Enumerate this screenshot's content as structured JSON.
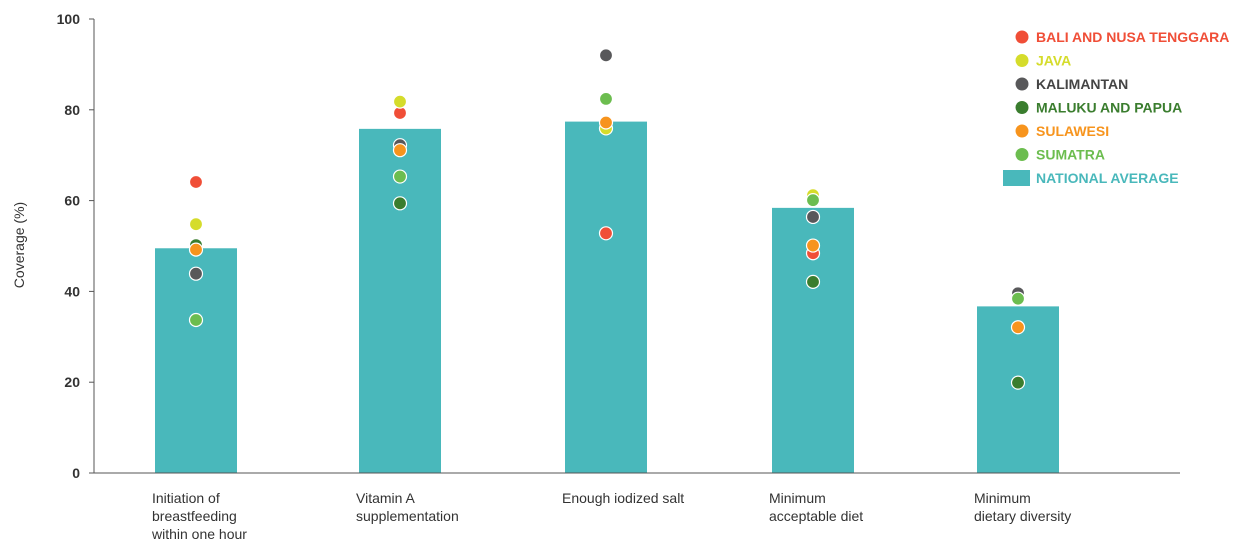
{
  "chart_data": {
    "type": "bar",
    "ylabel": "Coverage (%)",
    "ylim": [
      0,
      100
    ],
    "yticks": [
      0,
      20,
      40,
      60,
      80,
      100
    ],
    "categories": [
      [
        "Initiation of",
        "breastfeeding",
        "within one hour"
      ],
      [
        "Vitamin A",
        "supplementation"
      ],
      [
        "Enough iodized salt"
      ],
      [
        "Minimum",
        "acceptable diet"
      ],
      [
        "Minimum",
        "dietary diversity"
      ]
    ],
    "bar_series": {
      "name": "NATIONAL AVERAGE",
      "color": "#49b8bb",
      "values": [
        49.5,
        75.8,
        77.4,
        58.4,
        36.7
      ]
    },
    "point_series": [
      {
        "name": "BALI AND NUSA TENGGARA",
        "color": "#f04e37",
        "values": [
          64.1,
          79.3,
          52.8,
          48.4,
          null
        ]
      },
      {
        "name": "JAVA",
        "color": "#d5dc2b",
        "values": [
          54.8,
          81.8,
          75.9,
          61.2,
          null
        ]
      },
      {
        "name": "KALIMANTAN",
        "color": "#58585a",
        "values": [
          43.9,
          72.2,
          92.0,
          56.4,
          39.6
        ]
      },
      {
        "name": "MALUKU AND PAPUA",
        "color": "#3a7d2e",
        "values": [
          50.2,
          59.4,
          null,
          42.1,
          19.9
        ]
      },
      {
        "name": "SULAWESI",
        "color": "#f7941d",
        "values": [
          49.2,
          71.1,
          77.2,
          50.1,
          32.1
        ]
      },
      {
        "name": "SUMATRA",
        "color": "#6cbd4f",
        "values": [
          33.7,
          65.3,
          82.4,
          60.1,
          38.4
        ]
      }
    ],
    "legend_position": "top-right",
    "grid": false
  }
}
